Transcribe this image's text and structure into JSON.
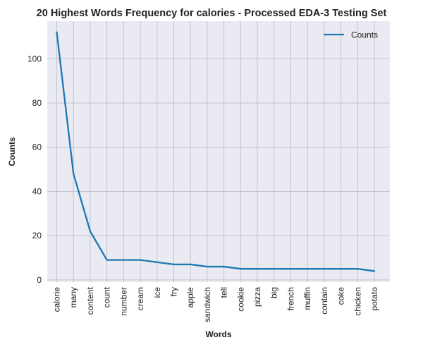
{
  "chart_data": {
    "type": "line",
    "title": "20 Highest Words Frequency for calories - Processed EDA-3 Testing Set",
    "xlabel": "Words",
    "ylabel": "Counts",
    "categories": [
      "calorie",
      "many",
      "content",
      "count",
      "number",
      "cream",
      "ice",
      "fry",
      "apple",
      "sandwich",
      "tell",
      "cookie",
      "pizza",
      "big",
      "french",
      "muffin",
      "contain",
      "coke",
      "chicken",
      "potato"
    ],
    "series": [
      {
        "name": "Counts",
        "values": [
          112,
          48,
          22,
          9,
          9,
          9,
          8,
          7,
          7,
          6,
          6,
          5,
          5,
          5,
          5,
          5,
          5,
          5,
          5,
          4
        ],
        "color": "#1f77b4"
      }
    ],
    "ylim": [
      -1,
      117
    ],
    "yticks": [
      0,
      20,
      40,
      60,
      80,
      100
    ],
    "grid": true,
    "legend_position": "top-right",
    "background": "#eaeaf2",
    "grid_color": "#c4c4c9"
  }
}
